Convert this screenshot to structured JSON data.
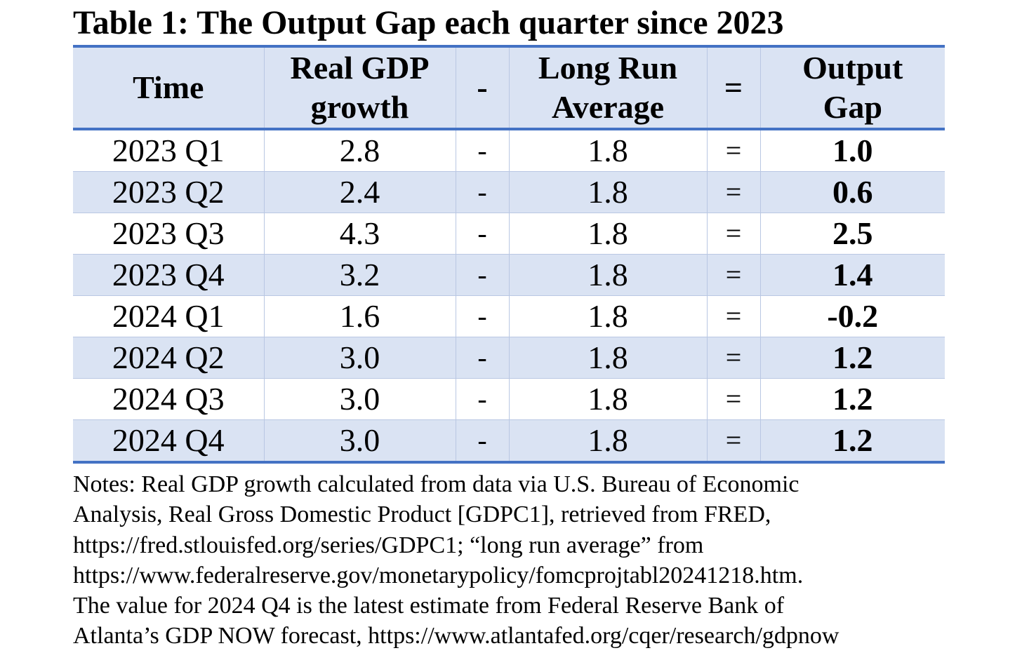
{
  "title": "Table 1: The Output Gap each quarter since 2023",
  "table": {
    "headers": {
      "time": "Time",
      "growth_line1": "Real GDP",
      "growth_line2": "growth",
      "minus": "-",
      "avg_line1": "Long Run",
      "avg_line2": "Average",
      "equals": "=",
      "gap_line1": "Output",
      "gap_line2": "Gap"
    },
    "rows": [
      {
        "time": "2023 Q1",
        "growth": "2.8",
        "minus": "-",
        "average": "1.8",
        "equals": "=",
        "gap": "1.0"
      },
      {
        "time": "2023 Q2",
        "growth": "2.4",
        "minus": "-",
        "average": "1.8",
        "equals": "=",
        "gap": "0.6"
      },
      {
        "time": "2023 Q3",
        "growth": "4.3",
        "minus": "-",
        "average": "1.8",
        "equals": "=",
        "gap": "2.5"
      },
      {
        "time": "2023 Q4",
        "growth": "3.2",
        "minus": "-",
        "average": "1.8",
        "equals": "=",
        "gap": "1.4"
      },
      {
        "time": "2024 Q1",
        "growth": "1.6",
        "minus": "-",
        "average": "1.8",
        "equals": "=",
        "gap": "-0.2"
      },
      {
        "time": "2024 Q2",
        "growth": "3.0",
        "minus": "-",
        "average": "1.8",
        "equals": "=",
        "gap": "1.2"
      },
      {
        "time": "2024 Q3",
        "growth": "3.0",
        "minus": "-",
        "average": "1.8",
        "equals": "=",
        "gap": "1.2"
      },
      {
        "time": "2024 Q4",
        "growth": "3.0",
        "minus": "-",
        "average": "1.8",
        "equals": "=",
        "gap": "1.2"
      }
    ]
  },
  "notes": [
    "Notes: Real GDP growth calculated from data via U.S. Bureau of Economic",
    "Analysis, Real Gross Domestic Product [GDPC1], retrieved from FRED,",
    "https://fred.stlouisfed.org/series/GDPC1; “long run average” from",
    "https://www.federalreserve.gov/monetarypolicy/fomcprojtabl20241218.htm.",
    "The value for 2024 Q4 is the latest estimate from Federal Reserve Bank of",
    "Atlanta’s GDP NOW forecast, https://www.atlantafed.org/cqer/research/gdpnow"
  ],
  "colors": {
    "header_fill": "#dae3f3",
    "band_fill": "#dae3f3",
    "rule": "#4472c4"
  }
}
